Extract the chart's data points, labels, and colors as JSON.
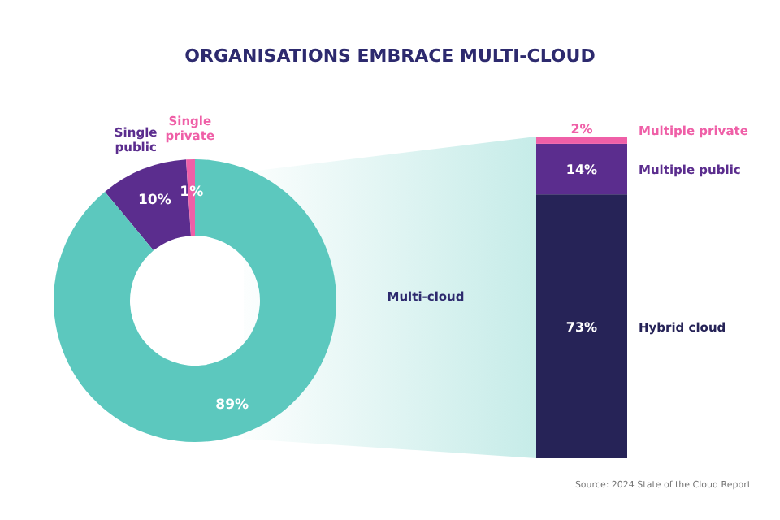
{
  "chart_data": [
    {
      "type": "donut",
      "title": "ORGANISATIONS EMBRACE MULTI-CLOUD",
      "categories": [
        "Single public",
        "Single private",
        "Multi-cloud"
      ],
      "values": [
        10,
        1,
        89
      ],
      "colors": [
        "#5b2d8e",
        "#ef5fa7",
        "#5cc8be"
      ],
      "value_labels": [
        "10%",
        "1%",
        "89%"
      ]
    },
    {
      "type": "bar",
      "stacked": true,
      "categories": [
        null
      ],
      "series": [
        {
          "name": "Hybrid cloud",
          "color": "#262357",
          "values": [
            73
          ],
          "value_labels": [
            "73%"
          ]
        },
        {
          "name": "Multiple public",
          "color": "#5b2d8e",
          "values": [
            14
          ],
          "value_labels": [
            "14%"
          ]
        },
        {
          "name": "Multiple private",
          "color": "#ef5fa7",
          "values": [
            2
          ],
          "value_labels": [
            "2%"
          ]
        }
      ],
      "annotations": [
        "Source: 2024 State of the Cloud Report"
      ]
    }
  ]
}
